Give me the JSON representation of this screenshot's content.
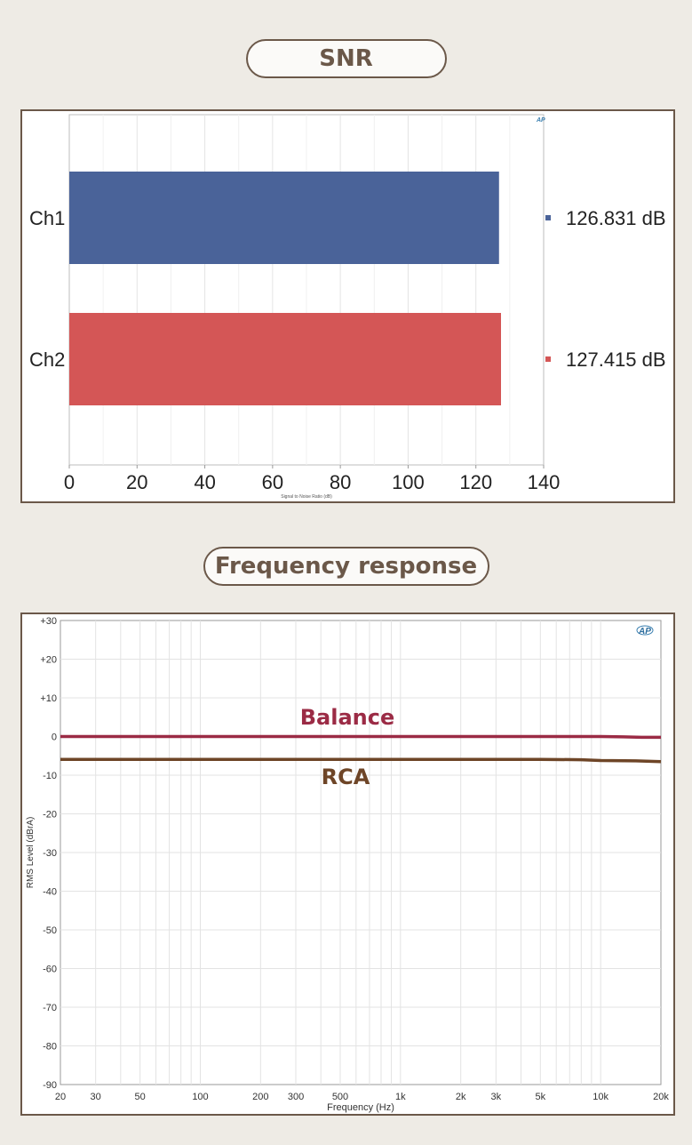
{
  "snr_title": "SNR",
  "fr_title": "Frequency response",
  "colors": {
    "ch1": "#4a6399",
    "ch2": "#d45656",
    "balance": "#9b2b45",
    "rca": "#6e4527",
    "accent": "#6b5849"
  },
  "snr_logo": "AP",
  "fr_logo": "AP",
  "chart_data": [
    {
      "type": "bar",
      "orientation": "horizontal",
      "title": "SNR",
      "categories": [
        "Ch1",
        "Ch2"
      ],
      "values": [
        126.831,
        127.415
      ],
      "value_labels": [
        "126.831 dB",
        "127.415 dB"
      ],
      "xlabel": "Signal to Noise Ratio (dB)",
      "xlim": [
        0,
        140
      ],
      "xticks": [
        0,
        20,
        40,
        60,
        80,
        100,
        120,
        140
      ],
      "xtick_labels": [
        "0",
        "20",
        "40",
        "60",
        "80",
        "100",
        "120",
        "140"
      ],
      "grid": true
    },
    {
      "type": "line",
      "title": "Frequency response",
      "xlabel": "Frequency (Hz)",
      "ylabel": "RMS Level (dBrA)",
      "xscale": "log",
      "xlim": [
        20,
        20000
      ],
      "ylim": [
        -90,
        30
      ],
      "xticks": [
        20,
        30,
        50,
        100,
        200,
        300,
        500,
        1000,
        2000,
        3000,
        5000,
        10000,
        20000
      ],
      "xtick_labels": [
        "20",
        "30",
        "50",
        "100",
        "200",
        "300",
        "500",
        "1k",
        "2k",
        "3k",
        "5k",
        "10k",
        "20k"
      ],
      "yticks": [
        30,
        20,
        10,
        0,
        -10,
        -20,
        -30,
        -40,
        -50,
        -60,
        -70,
        -80,
        -90
      ],
      "ytick_labels": [
        "+30",
        "+20",
        "+10",
        "0",
        "-10",
        "-20",
        "-30",
        "-40",
        "-50",
        "-60",
        "-70",
        "-80",
        "-90"
      ],
      "series": [
        {
          "name": "Balance",
          "x": [
            20,
            100,
            1000,
            5000,
            10000,
            13000,
            16000,
            20000
          ],
          "y": [
            0,
            0,
            0,
            0,
            0,
            -0.1,
            -0.2,
            -0.2
          ]
        },
        {
          "name": "RCA",
          "x": [
            20,
            100,
            1000,
            5000,
            8000,
            10000,
            15000,
            20000
          ],
          "y": [
            -5.9,
            -5.9,
            -5.9,
            -5.9,
            -6.0,
            -6.2,
            -6.3,
            -6.5
          ]
        }
      ],
      "annotations": [
        "Balance",
        "RCA"
      ],
      "grid": true
    }
  ]
}
